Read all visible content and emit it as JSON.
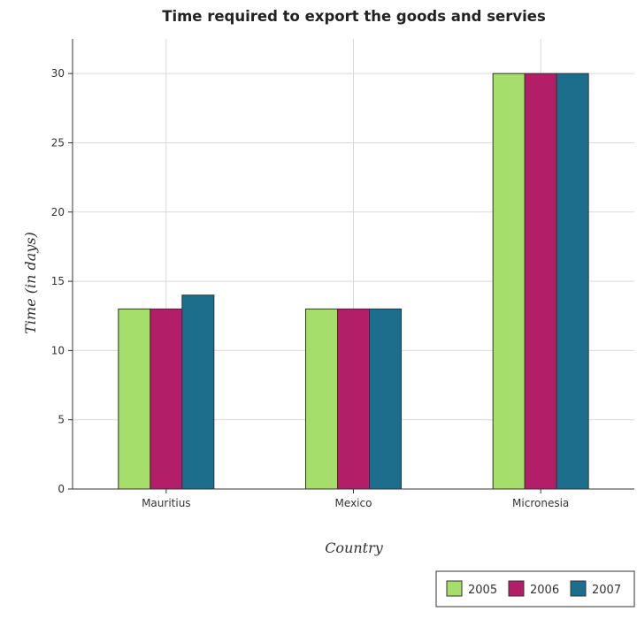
{
  "chart_data": {
    "type": "bar",
    "title": "Time required to export the goods and servies",
    "xlabel": "Country",
    "ylabel": "Time (in days)",
    "categories": [
      "Mauritius",
      "Mexico",
      "Micronesia"
    ],
    "series": [
      {
        "name": "2005",
        "color": "#a6de6b",
        "values": [
          13,
          13,
          30
        ]
      },
      {
        "name": "2006",
        "color": "#b31e68",
        "values": [
          13,
          13,
          30
        ]
      },
      {
        "name": "2007",
        "color": "#1c6e8c",
        "values": [
          14,
          13,
          30
        ]
      }
    ],
    "ylim": [
      0,
      32.5
    ],
    "yticks": [
      0,
      5,
      10,
      15,
      20,
      25,
      30
    ],
    "grid": true,
    "legend_position": "bottom-right"
  }
}
